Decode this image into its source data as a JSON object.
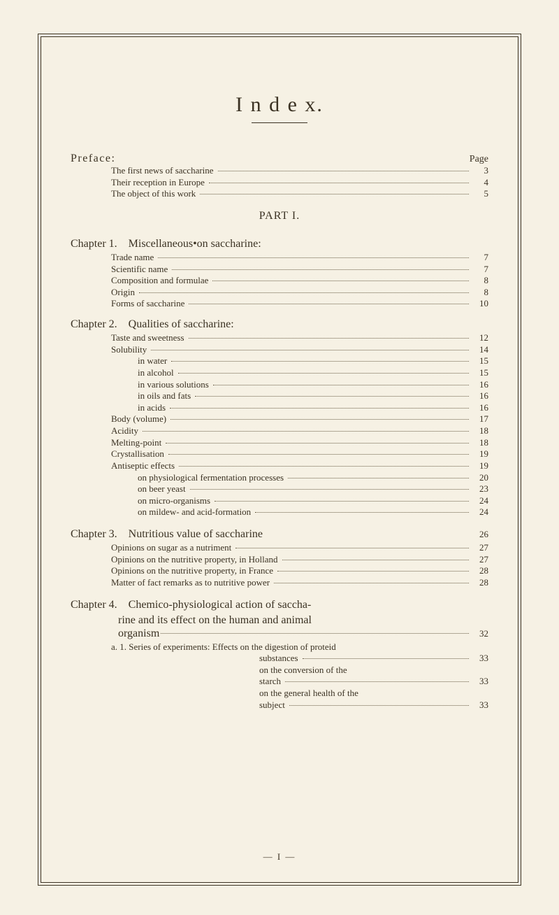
{
  "title": "I n d e x.",
  "preface": {
    "label": "Preface:",
    "page_word": "Page"
  },
  "preface_entries": [
    {
      "text": "The first news of saccharine",
      "num": "3"
    },
    {
      "text": "Their reception in Europe",
      "num": "4"
    },
    {
      "text": "The object of this work",
      "num": "5"
    }
  ],
  "part1": "PART I.",
  "chap1": {
    "label": "Chapter 1.",
    "title": "Miscellaneous•on saccharine:"
  },
  "chap1_entries": [
    {
      "text": "Trade name",
      "num": "7"
    },
    {
      "text": "Scientific name",
      "num": "7"
    },
    {
      "text": "Composition and formulae",
      "num": "8"
    },
    {
      "text": "Origin",
      "num": "8"
    },
    {
      "text": "Forms of saccharine",
      "num": "10"
    }
  ],
  "chap2": {
    "label": "Chapter 2.",
    "title": "Qualities of saccharine:"
  },
  "chap2_entries": [
    {
      "ind": 1,
      "text": "Taste and sweetness",
      "num": "12"
    },
    {
      "ind": 1,
      "text": "Solubility",
      "num": "14"
    },
    {
      "ind": 2,
      "text": "in water",
      "num": "15"
    },
    {
      "ind": 2,
      "text": "in alcohol",
      "num": "15"
    },
    {
      "ind": 2,
      "text": "in various solutions",
      "num": "16"
    },
    {
      "ind": 2,
      "text": "in oils and fats",
      "num": "16"
    },
    {
      "ind": 2,
      "text": "in acids",
      "num": "16"
    },
    {
      "ind": 1,
      "text": "Body (volume)",
      "num": "17"
    },
    {
      "ind": 1,
      "text": "Acidity",
      "num": "18"
    },
    {
      "ind": 1,
      "text": "Melting-point",
      "num": "18"
    },
    {
      "ind": 1,
      "text": "Crystallisation",
      "num": "19"
    },
    {
      "ind": 1,
      "text": "Antiseptic effects",
      "num": "19"
    },
    {
      "ind": 2,
      "text": "on physiological fermentation processes",
      "num": "20"
    },
    {
      "ind": 2,
      "text": "on beer yeast",
      "num": "23"
    },
    {
      "ind": 2,
      "text": "on micro-organisms",
      "num": "24"
    },
    {
      "ind": 2,
      "text": "on mildew- and acid-formation",
      "num": "24"
    }
  ],
  "chap3": {
    "label": "Chapter 3.",
    "title": "Nutritious value of saccharine",
    "num": "26"
  },
  "chap3_entries": [
    {
      "text": "Opinions on sugar as a nutriment",
      "num": "27"
    },
    {
      "text": "Opinions on the nutritive property, in Holland",
      "num": "27"
    },
    {
      "text": "Opinions on the nutritive property, in France",
      "num": "28"
    },
    {
      "text": "Matter of fact remarks as to nutritive power",
      "num": "28"
    }
  ],
  "chap4": {
    "label": "Chapter 4.",
    "line1_tail": "Chemico-physiological action of saccha-",
    "line2": "rine and its effect on the human and animal",
    "line3_word": "organism",
    "num": "32"
  },
  "chap4_a_lead": "a. 1. Series of experiments: Effects on the digestion of proteid",
  "chap4_sub": [
    {
      "text": "substances",
      "num": "33"
    },
    {
      "text": "on the conversion of the",
      "num": ""
    },
    {
      "text": "starch",
      "num": "33"
    },
    {
      "text": "on the general health of the",
      "num": ""
    },
    {
      "text": "subject",
      "num": "33"
    }
  ],
  "signature": "— I —"
}
